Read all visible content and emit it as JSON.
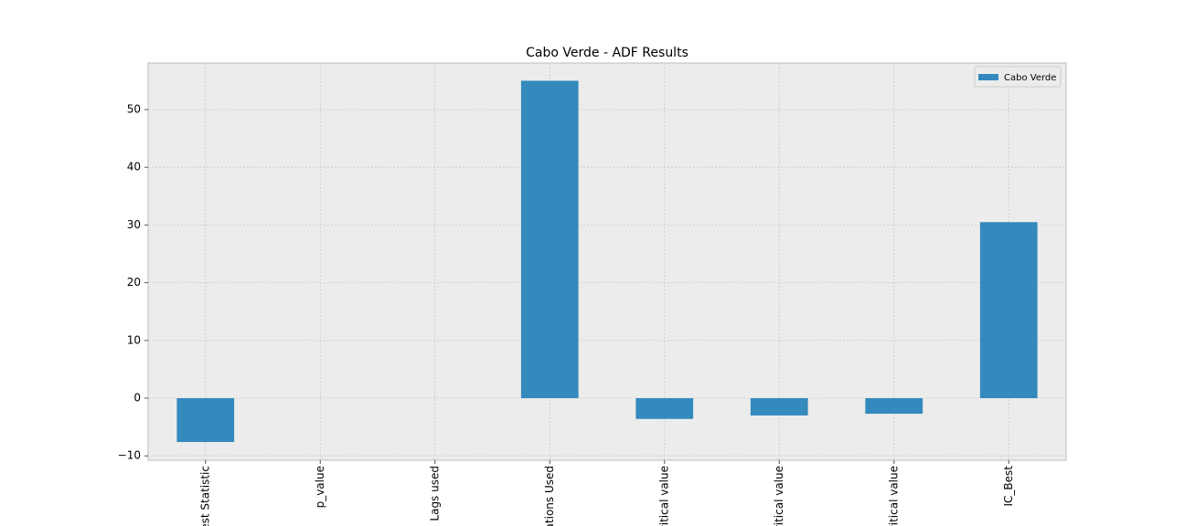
{
  "chart_data": {
    "type": "bar",
    "title": "Cabo Verde - ADF Results",
    "categories": [
      "est Statistic",
      "p_value",
      "Lags used",
      "ations Used",
      "ritical value",
      "ritical value",
      "ritical value",
      "IC_Best"
    ],
    "series": [
      {
        "name": "Cabo Verde",
        "color": "#348abd",
        "values": [
          -7.6,
          0,
          0,
          55,
          -3.6,
          -3.0,
          -2.7,
          30.5
        ]
      }
    ],
    "ylim": [
      -10.76,
      58.07
    ],
    "yticks": [
      {
        "value": -10,
        "label": "−10"
      },
      0,
      10,
      20,
      30,
      40,
      50
    ],
    "grid": true,
    "legend": "upper right"
  }
}
